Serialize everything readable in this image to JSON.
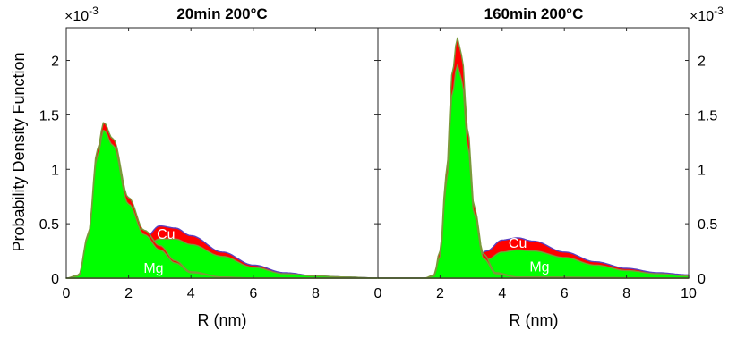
{
  "chart_data": [
    {
      "type": "area",
      "title": "20min 200°C",
      "xlabel": "R (nm)",
      "ylabel": "Probability Density Function",
      "xlim": [
        0,
        10
      ],
      "ylim": [
        0,
        0.0023
      ],
      "xticks": [
        0,
        2,
        4,
        6,
        8
      ],
      "xtick_labels": [
        "0",
        "2",
        "4",
        "6",
        "8"
      ],
      "yticks": [
        0,
        0.0005,
        0.001,
        0.0015,
        0.002
      ],
      "ytick_labels": [
        "0",
        "0.5",
        "1",
        "1.5",
        "2"
      ],
      "y_exponent_label": "×10",
      "y_exponent_power": "-3",
      "y_axis_side": "left",
      "fill_colors": {
        "green": "#00ff00",
        "red": "#ff0000",
        "outline_green": "#7a9a3a",
        "outline_blue": "#5a3fc0"
      },
      "annotations": [
        {
          "text": "Cu",
          "x": 3.2,
          "y": 0.00036
        },
        {
          "text": "Mg",
          "x": 2.8,
          "y": 5e-05
        }
      ],
      "series": [
        {
          "name": "Cu",
          "color": "#ff0000",
          "x": [
            0,
            0.4,
            0.7,
            1.0,
            1.2,
            1.5,
            2.0,
            2.5,
            3.0,
            3.5,
            4.0,
            5.0,
            6.0,
            7.0,
            8.0,
            9.0,
            10.0
          ],
          "values": [
            0,
            3e-05,
            0.0004,
            0.00118,
            0.00143,
            0.00128,
            0.00074,
            0.00044,
            0.0003,
            0.00016,
            6e-05,
            1e-05,
            0,
            0,
            0,
            0,
            0
          ]
        },
        {
          "name": "Cu",
          "color": "#ff0000",
          "x": [
            0,
            1.0,
            1.5,
            2.0,
            2.5,
            3.0,
            3.5,
            4.0,
            5.0,
            6.0,
            7.0,
            8.0,
            9.0,
            10.0
          ],
          "values": [
            0,
            1e-05,
            5e-05,
            0.00018,
            0.00036,
            0.00048,
            0.00046,
            0.00039,
            0.00024,
            0.00012,
            5e-05,
            2e-05,
            1e-05,
            0
          ]
        },
        {
          "name": "Mg",
          "color": "#00ff00",
          "x": [
            0,
            0.4,
            0.7,
            1.0,
            1.2,
            1.5,
            2.0,
            2.5,
            3.0,
            3.5,
            4.0,
            5.0,
            6.0,
            7.0,
            8.0,
            9.0,
            10.0
          ],
          "values": [
            0,
            2e-05,
            0.00038,
            0.00112,
            0.00136,
            0.00122,
            0.00068,
            0.0004,
            0.00026,
            0.00014,
            5e-05,
            1e-05,
            0,
            0,
            0,
            0,
            0
          ]
        },
        {
          "name": "Mg",
          "color": "#00ff00",
          "x": [
            0,
            1.0,
            1.5,
            2.0,
            2.5,
            3.0,
            3.5,
            4.0,
            5.0,
            6.0,
            7.0,
            8.0,
            9.0,
            10.0
          ],
          "values": [
            0,
            1e-05,
            4e-05,
            0.00014,
            0.00028,
            0.00036,
            0.00036,
            0.00031,
            0.0002,
            0.0001,
            4e-05,
            2e-05,
            1e-05,
            0
          ]
        }
      ]
    },
    {
      "type": "area",
      "title": "160min 200°C",
      "xlabel": "R (nm)",
      "ylabel": "",
      "xlim": [
        0,
        10
      ],
      "ylim": [
        0,
        0.0023
      ],
      "xticks": [
        0,
        2,
        4,
        6,
        8,
        10
      ],
      "xtick_labels": [
        "0",
        "2",
        "4",
        "6",
        "8",
        "10"
      ],
      "yticks": [
        0,
        0.0005,
        0.001,
        0.0015,
        0.002
      ],
      "ytick_labels": [
        "0",
        "0.5",
        "1",
        "1.5",
        "2"
      ],
      "y_exponent_label": "×10",
      "y_exponent_power": "-3",
      "y_axis_side": "right",
      "fill_colors": {
        "green": "#00ff00",
        "red": "#ff0000",
        "outline_green": "#7a9a3a",
        "outline_blue": "#5a3fc0"
      },
      "annotations": [
        {
          "text": "Cu",
          "x": 4.5,
          "y": 0.00028
        },
        {
          "text": "Mg",
          "x": 5.2,
          "y": 6e-05
        }
      ],
      "series": [
        {
          "name": "Cu",
          "color": "#ff0000",
          "x": [
            0,
            1.5,
            1.8,
            2.0,
            2.2,
            2.4,
            2.55,
            2.7,
            2.9,
            3.1,
            3.4,
            3.8,
            4.5,
            10.0
          ],
          "values": [
            0,
            0,
            3e-05,
            0.00025,
            0.00095,
            0.0019,
            0.00221,
            0.00205,
            0.00135,
            0.00065,
            0.00022,
            5e-05,
            1e-05,
            0
          ]
        },
        {
          "name": "Cu",
          "color": "#ff0000",
          "x": [
            0,
            1.5,
            2.0,
            2.5,
            3.0,
            3.5,
            4.0,
            4.5,
            5.0,
            6.0,
            7.0,
            8.0,
            9.0,
            10.0
          ],
          "values": [
            0,
            0,
            1e-05,
            4e-05,
            0.00012,
            0.00025,
            0.00035,
            0.00037,
            0.00034,
            0.00024,
            0.00015,
            9e-05,
            5e-05,
            3e-05
          ]
        },
        {
          "name": "Mg",
          "color": "#00ff00",
          "x": [
            0,
            1.5,
            1.8,
            2.0,
            2.2,
            2.4,
            2.55,
            2.7,
            2.9,
            3.1,
            3.4,
            3.8,
            4.5,
            10.0
          ],
          "values": [
            0,
            0,
            2e-05,
            0.0002,
            0.00085,
            0.0017,
            0.00196,
            0.00182,
            0.0012,
            0.00058,
            0.00018,
            4e-05,
            1e-05,
            0
          ]
        },
        {
          "name": "Mg",
          "color": "#00ff00",
          "x": [
            0,
            1.5,
            2.0,
            2.5,
            3.0,
            3.5,
            4.0,
            4.5,
            5.0,
            6.0,
            7.0,
            8.0,
            9.0,
            10.0
          ],
          "values": [
            0,
            0,
            1e-05,
            3e-05,
            8e-05,
            0.00017,
            0.00024,
            0.00026,
            0.00025,
            0.00019,
            0.00012,
            7e-05,
            4e-05,
            2e-05
          ]
        }
      ]
    }
  ]
}
